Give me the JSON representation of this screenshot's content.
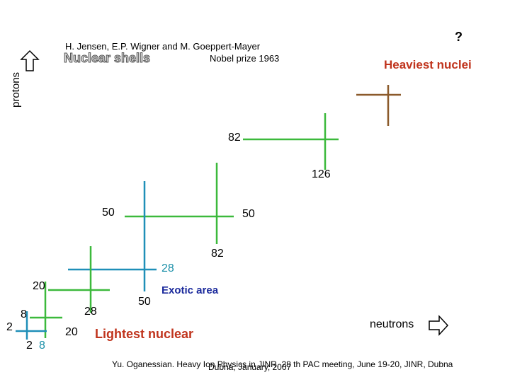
{
  "header": {
    "authors": "H. Jensen, E.P. Wigner and M. Goeppert-Mayer",
    "title": "Nuclear shells",
    "prize": "Nobel prize 1963",
    "question": "?",
    "heaviest": "Heaviest nuclei"
  },
  "axes": {
    "protons": "protons",
    "neutrons": "neutrons"
  },
  "labels": {
    "n82_top": "82",
    "n126": "126",
    "p50_left": "50",
    "p50_right": "50",
    "p82_mid": "82",
    "p28_teal": "28",
    "p20_left": "20",
    "n50_bottom": "50",
    "n28": "28",
    "n8_left": "8",
    "n2_left": "2",
    "n20_bottom": "20",
    "n2_bottom": "2",
    "n8_bottom": "8"
  },
  "annotations": {
    "exotic": "Exotic area",
    "lightest": "Lightest nuclear"
  },
  "footer": {
    "line1": "Yu. Oganessian. Heavy Ion Physics in JINR. 28 th PAC meeting, June 19-20, JINR, Dubna",
    "line2": "Dubna, January, 2007"
  },
  "colors": {
    "green": "#3cb93c",
    "blue": "#1f8fb8",
    "brown": "#8b5a2b",
    "red": "#c0341d",
    "darkblue": "#1b2a9c"
  },
  "icons": [
    "up-arrow-icon",
    "right-arrow-icon"
  ]
}
